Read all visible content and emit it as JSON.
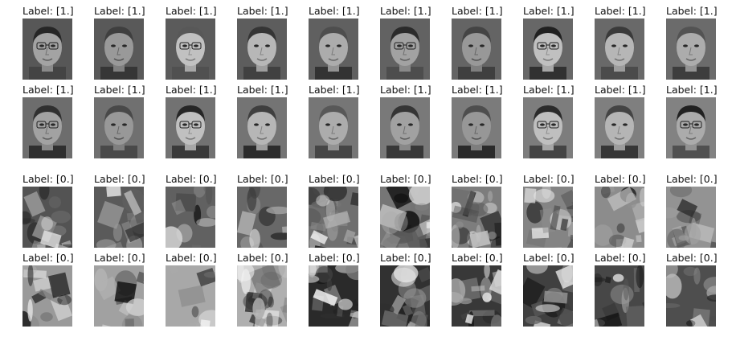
{
  "grid": {
    "rows": [
      {
        "cells": [
          {
            "label": "Label: [1.]",
            "icon": "face-photo"
          },
          {
            "label": "Label: [1.]",
            "icon": "face-photo"
          },
          {
            "label": "Label: [1.]",
            "icon": "face-photo"
          },
          {
            "label": "Label: [1.]",
            "icon": "face-photo"
          },
          {
            "label": "Label: [1.]",
            "icon": "face-photo"
          },
          {
            "label": "Label: [1.]",
            "icon": "face-photo"
          },
          {
            "label": "Label: [1.]",
            "icon": "face-photo"
          },
          {
            "label": "Label: [1.]",
            "icon": "face-photo"
          },
          {
            "label": "Label: [1.]",
            "icon": "face-photo"
          },
          {
            "label": "Label: [1.]",
            "icon": "face-photo"
          }
        ]
      },
      {
        "cells": [
          {
            "label": "Label: [1.]",
            "icon": "face-photo"
          },
          {
            "label": "Label: [1.]",
            "icon": "face-photo"
          },
          {
            "label": "Label: [1.]",
            "icon": "face-photo"
          },
          {
            "label": "Label: [1.]",
            "icon": "face-photo"
          },
          {
            "label": "Label: [1.]",
            "icon": "face-photo"
          },
          {
            "label": "Label: [1.]",
            "icon": "face-photo"
          },
          {
            "label": "Label: [1.]",
            "icon": "face-photo"
          },
          {
            "label": "Label: [1.]",
            "icon": "face-photo"
          },
          {
            "label": "Label: [1.]",
            "icon": "face-photo"
          },
          {
            "label": "Label: [1.]",
            "icon": "face-photo"
          }
        ]
      },
      {
        "cells": [
          {
            "label": "Label: [0.]",
            "icon": "stone-bowl-photo"
          },
          {
            "label": "Label: [0.]",
            "icon": "crumpled-paper-photo"
          },
          {
            "label": "Label: [0.]",
            "icon": "bright-object-photo"
          },
          {
            "label": "Label: [0.]",
            "icon": "foliage-photo"
          },
          {
            "label": "Label: [0.]",
            "icon": "tulips-photo"
          },
          {
            "label": "Label: [0.]",
            "icon": "crystal-ornament-photo"
          },
          {
            "label": "Label: [0.]",
            "icon": "sphere-stack-photo"
          },
          {
            "label": "Label: [0.]",
            "icon": "paper-bird-photo"
          },
          {
            "label": "Label: [0.]",
            "icon": "bag-photo"
          },
          {
            "label": "Label: [0.]",
            "icon": "airplane-photo"
          }
        ]
      },
      {
        "cells": [
          {
            "label": "Label: [0.]",
            "icon": "flower-photo"
          },
          {
            "label": "Label: [0.]",
            "icon": "car-photo"
          },
          {
            "label": "Label: [0.]",
            "icon": "helicopter-photo"
          },
          {
            "label": "Label: [0.]",
            "icon": "moon-shell-photo"
          },
          {
            "label": "Label: [0.]",
            "icon": "dark-object-photo"
          },
          {
            "label": "Label: [0.]",
            "icon": "propeller-plane-photo"
          },
          {
            "label": "Label: [0.]",
            "icon": "airplane-photo"
          },
          {
            "label": "Label: [0.]",
            "icon": "foliage-photo"
          },
          {
            "label": "Label: [0.]",
            "icon": "hummer-truck-photo"
          },
          {
            "label": "Label: [0.]",
            "icon": "airplane-tail-photo"
          }
        ]
      }
    ]
  }
}
